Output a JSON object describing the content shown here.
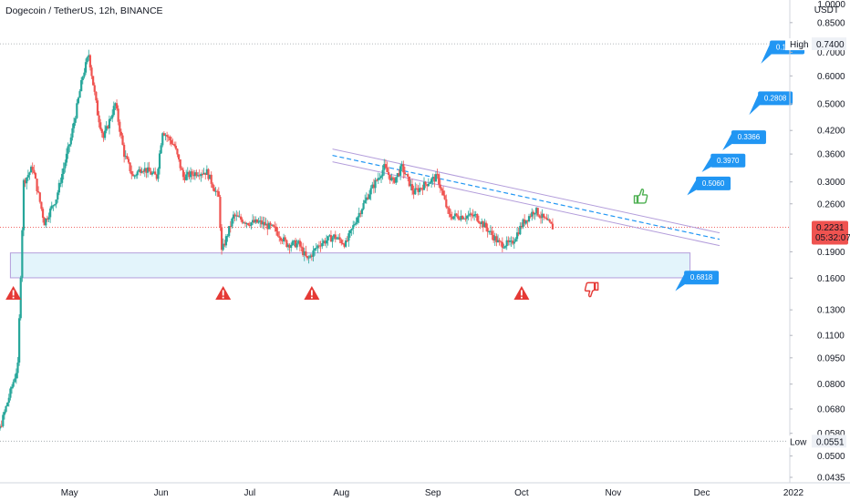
{
  "title": "Dogecoin / TetherUS, 12h, BINANCE",
  "colors": {
    "up": "#26a69a",
    "down": "#ef5350",
    "accent": "#2196f3",
    "zone_fill": "#e3f4fb",
    "zone_border": "#b39ddb",
    "warning": "#e53935",
    "price_label": "#ef5350"
  },
  "price_axis": {
    "unit_lines": [
      "1.0000",
      "USDT"
    ],
    "ticks": [
      "0.8500",
      "0.7000",
      "0.6000",
      "0.5000",
      "0.4200",
      "0.3600",
      "0.3000",
      "0.2600",
      "0.1900",
      "0.1600",
      "0.1300",
      "0.1100",
      "0.0950",
      "0.0800",
      "0.0680",
      "0.0580",
      "0.0500",
      "0.0435"
    ],
    "high_label": "High",
    "high_value": "0.7400",
    "low_label": "Low",
    "low_value": "0.0551",
    "current_price": "0.2231",
    "countdown": "05:32:07"
  },
  "time_axis": {
    "ticks": [
      "May",
      "Jun",
      "Jul",
      "Aug",
      "Sep",
      "Oct",
      "Nov",
      "Dec",
      "2022"
    ]
  },
  "target_labels": [
    "0.6818",
    "0.5060",
    "0.3970",
    "0.3366",
    "0.2808",
    "0.1566"
  ],
  "icons": {
    "warnings": [
      "warning-icon",
      "warning-icon",
      "warning-icon",
      "warning-icon"
    ],
    "thumbs_up": "thumbs-up-icon",
    "thumbs_down": "thumbs-down-icon"
  },
  "chart_data": {
    "type": "candlestick",
    "symbol": "DOGEUSDT",
    "interval": "12h",
    "y_scale": "log",
    "ylim": [
      0.0435,
      0.88
    ],
    "x_range": [
      "2021-04-01",
      "2022-01-01"
    ],
    "high": 0.74,
    "low": 0.0551,
    "last": 0.2231,
    "price_path": [
      [
        "2021-04-01",
        0.056
      ],
      [
        "2021-04-08",
        0.06
      ],
      [
        "2021-04-14",
        0.09
      ],
      [
        "2021-04-16",
        0.3
      ],
      [
        "2021-04-19",
        0.33
      ],
      [
        "2021-04-23",
        0.23
      ],
      [
        "2021-04-27",
        0.27
      ],
      [
        "2021-05-02",
        0.4
      ],
      [
        "2021-05-06",
        0.6
      ],
      [
        "2021-05-08",
        0.69
      ],
      [
        "2021-05-11",
        0.47
      ],
      [
        "2021-05-13",
        0.4
      ],
      [
        "2021-05-17",
        0.5
      ],
      [
        "2021-05-20",
        0.36
      ],
      [
        "2021-05-23",
        0.31
      ],
      [
        "2021-05-26",
        0.33
      ],
      [
        "2021-05-31",
        0.31
      ],
      [
        "2021-06-02",
        0.42
      ],
      [
        "2021-06-06",
        0.38
      ],
      [
        "2021-06-09",
        0.31
      ],
      [
        "2021-06-14",
        0.32
      ],
      [
        "2021-06-17",
        0.32
      ],
      [
        "2021-06-21",
        0.27
      ],
      [
        "2021-06-22",
        0.19
      ],
      [
        "2021-06-26",
        0.24
      ],
      [
        "2021-07-01",
        0.23
      ],
      [
        "2021-07-05",
        0.23
      ],
      [
        "2021-07-10",
        0.22
      ],
      [
        "2021-07-14",
        0.2
      ],
      [
        "2021-07-18",
        0.2
      ],
      [
        "2021-07-21",
        0.18
      ],
      [
        "2021-07-25",
        0.2
      ],
      [
        "2021-07-30",
        0.21
      ],
      [
        "2021-08-03",
        0.2
      ],
      [
        "2021-08-07",
        0.24
      ],
      [
        "2021-08-11",
        0.28
      ],
      [
        "2021-08-16",
        0.33
      ],
      [
        "2021-08-19",
        0.3
      ],
      [
        "2021-08-22",
        0.33
      ],
      [
        "2021-08-26",
        0.28
      ],
      [
        "2021-08-31",
        0.3
      ],
      [
        "2021-09-03",
        0.31
      ],
      [
        "2021-09-07",
        0.24
      ],
      [
        "2021-09-11",
        0.24
      ],
      [
        "2021-09-16",
        0.24
      ],
      [
        "2021-09-20",
        0.22
      ],
      [
        "2021-09-24",
        0.2
      ],
      [
        "2021-09-28",
        0.2
      ],
      [
        "2021-10-02",
        0.23
      ],
      [
        "2021-10-06",
        0.25
      ],
      [
        "2021-10-08",
        0.24
      ],
      [
        "2021-10-12",
        0.2231
      ]
    ],
    "resistance_trendline": {
      "from": [
        "2021-07-29",
        0.372
      ],
      "to": [
        "2021-12-07",
        0.215
      ]
    },
    "support_zone": {
      "from": "2021-04-11",
      "to": "2021-11-27",
      "top": 0.1886,
      "bottom": 0.1603
    },
    "warning_dates": [
      "2021-04-12",
      "2021-06-22",
      "2021-07-22",
      "2021-10-01"
    ],
    "targets": [
      0.1566,
      0.2808,
      0.3366,
      0.397,
      0.506,
      0.6818
    ]
  }
}
